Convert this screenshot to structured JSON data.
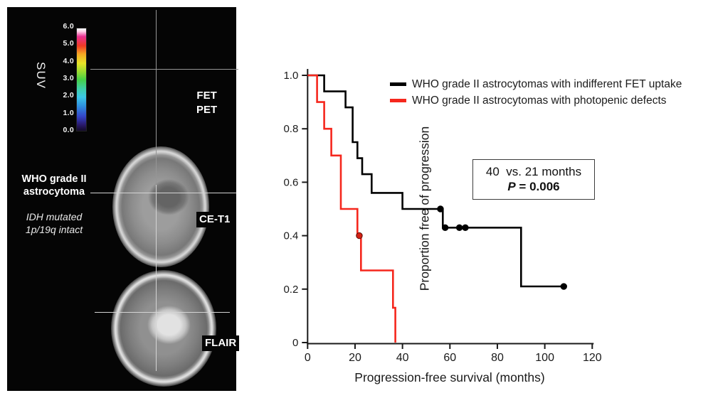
{
  "left_panel": {
    "suv_label": "SUV",
    "colorbar_ticks": [
      "6.0",
      "5.0",
      "4.0",
      "3.0",
      "2.0",
      "1.0",
      "0.0"
    ],
    "diagnosis_line1": "WHO grade II",
    "diagnosis_line2": "astrocytoma",
    "genetics_line1": "IDH mutated",
    "genetics_line2": "1p/19q intact",
    "fet_label_line1": "FET",
    "fet_label_line2": "PET",
    "cet1_label": "CE-T1",
    "flair_label": "FLAIR"
  },
  "chart": {
    "ylabel": "Proportion free of progression",
    "xlabel": "Progression-free survival (months)",
    "legend": [
      {
        "label": "WHO grade II astrocytomas with indifferent FET uptake",
        "color": "#000000"
      },
      {
        "label": "WHO grade II astrocytomas with photopenic defects",
        "color": "#f5271d"
      }
    ],
    "annotation": {
      "line1": "40  vs. 21 months",
      "p_label": "P",
      "p_rest": " = 0.006"
    }
  },
  "chart_data": {
    "type": "line",
    "subtype": "kaplan-meier-step",
    "title": "",
    "xlabel": "Progression-free survival (months)",
    "ylabel": "Proportion free of progression",
    "xlim": [
      0,
      120
    ],
    "ylim": [
      0,
      1.0
    ],
    "x_ticks": [
      0,
      20,
      40,
      60,
      80,
      100,
      120
    ],
    "y_ticks": [
      {
        "label": "1.0",
        "value": 1.0
      },
      {
        "label": "0.8",
        "value": 0.8
      },
      {
        "label": "0.6",
        "value": 0.6
      },
      {
        "label": "0.4",
        "value": 0.4
      },
      {
        "label": "0.2",
        "value": 0.2
      },
      {
        "label": "0",
        "value": 0.0
      }
    ],
    "grid": false,
    "legend_position": "upper right",
    "annotation_text": "40 vs. 21 months, P = 0.006",
    "p_value": 0.006,
    "series": [
      {
        "name": "WHO grade II astrocytomas with indifferent FET uptake",
        "color": "#000000",
        "median_months": 40,
        "points": [
          [
            0,
            1.0
          ],
          [
            7,
            1.0
          ],
          [
            7,
            0.94
          ],
          [
            16,
            0.94
          ],
          [
            16,
            0.88
          ],
          [
            19,
            0.88
          ],
          [
            19,
            0.75
          ],
          [
            21,
            0.75
          ],
          [
            21,
            0.69
          ],
          [
            23,
            0.69
          ],
          [
            23,
            0.63
          ],
          [
            27,
            0.63
          ],
          [
            27,
            0.56
          ],
          [
            40,
            0.56
          ],
          [
            40,
            0.5
          ],
          [
            57,
            0.5
          ],
          [
            57,
            0.43
          ],
          [
            90,
            0.43
          ],
          [
            90,
            0.21
          ],
          [
            108,
            0.21
          ]
        ],
        "censored": [
          [
            56,
            0.5
          ],
          [
            58,
            0.43
          ],
          [
            64,
            0.43
          ],
          [
            66.5,
            0.43
          ],
          [
            108,
            0.21
          ]
        ]
      },
      {
        "name": "WHO grade II astrocytomas with photopenic defects",
        "color": "#f5271d",
        "median_months": 21,
        "points": [
          [
            0,
            1.0
          ],
          [
            4,
            1.0
          ],
          [
            4,
            0.9
          ],
          [
            7,
            0.9
          ],
          [
            7,
            0.8
          ],
          [
            10,
            0.8
          ],
          [
            10,
            0.7
          ],
          [
            14,
            0.7
          ],
          [
            14,
            0.5
          ],
          [
            21,
            0.5
          ],
          [
            21,
            0.4
          ],
          [
            22.5,
            0.4
          ],
          [
            22.5,
            0.27
          ],
          [
            36,
            0.27
          ],
          [
            36,
            0.13
          ],
          [
            37,
            0.13
          ],
          [
            37,
            0.0
          ]
        ],
        "censored": [
          [
            21.8,
            0.4
          ]
        ]
      }
    ]
  }
}
